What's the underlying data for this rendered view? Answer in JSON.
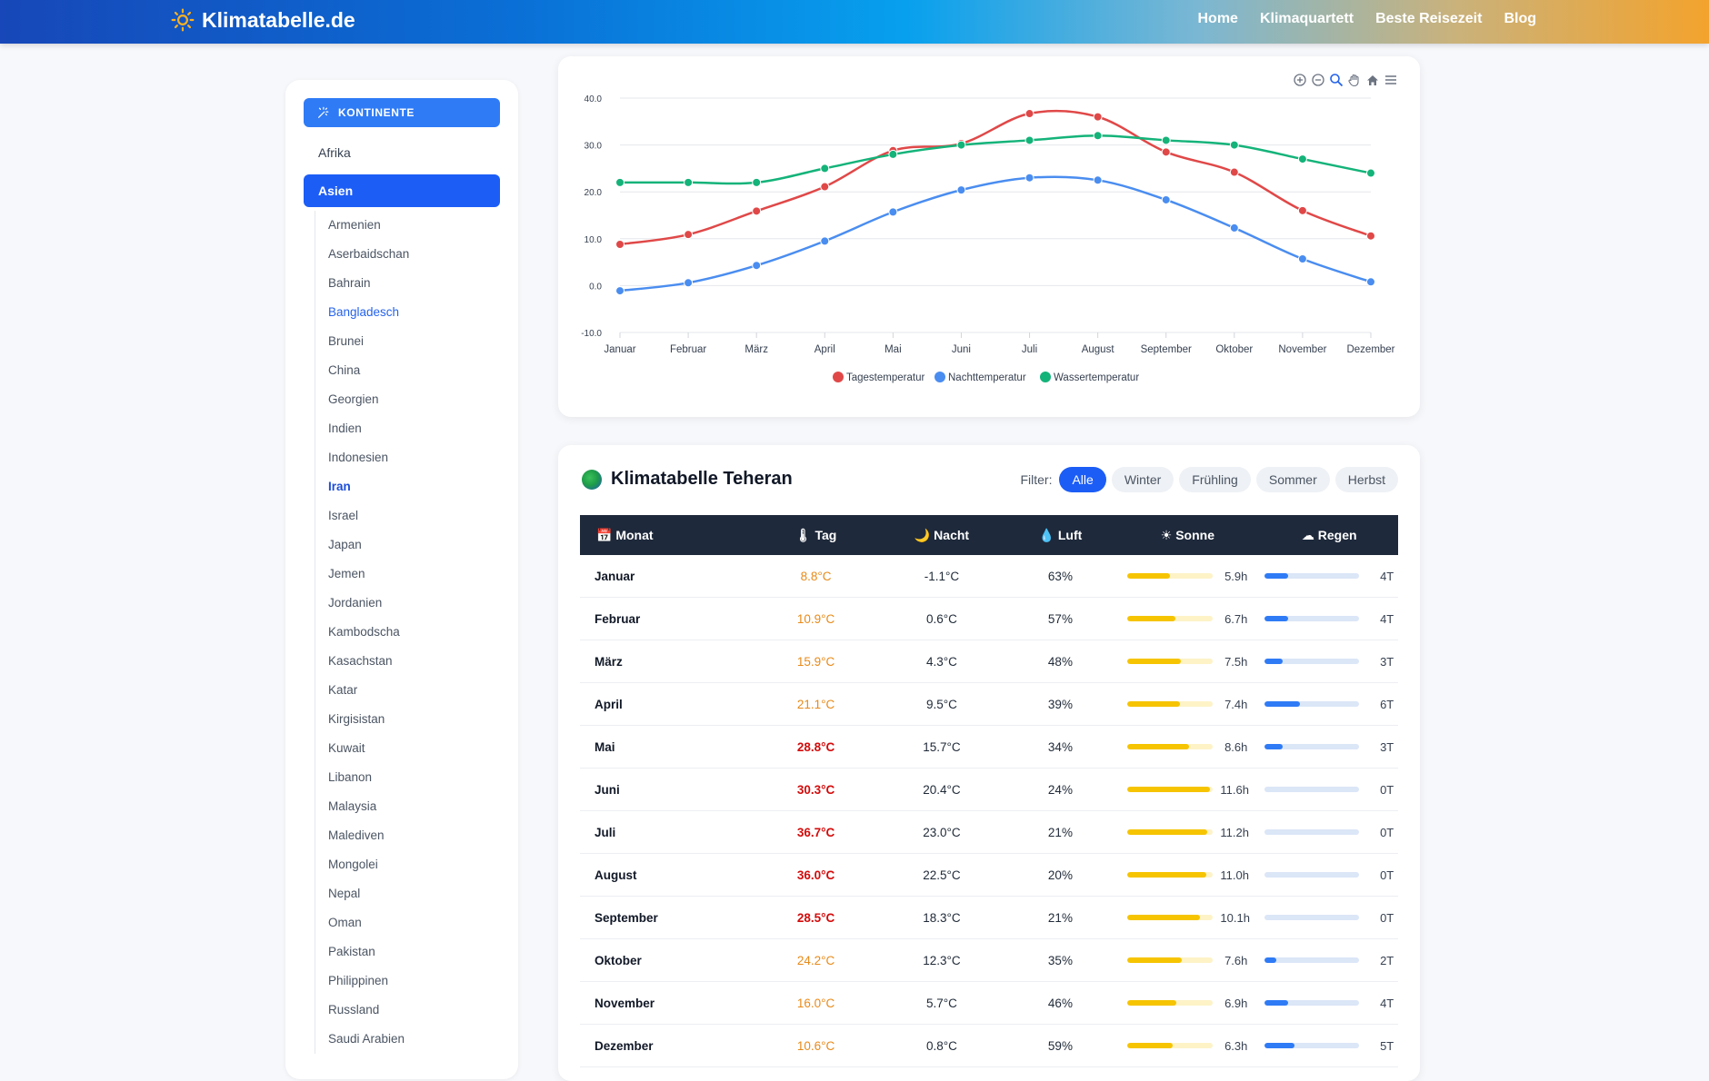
{
  "brand": {
    "name": "Klimatabelle.de",
    "logo_icon": "sun-icon"
  },
  "nav": [
    "Home",
    "Klimaquartett",
    "Beste Reisezeit",
    "Blog"
  ],
  "sidebar": {
    "continents_label": "KONTINENTE",
    "continents": [
      {
        "label": "Afrika",
        "active": false
      },
      {
        "label": "Asien",
        "active": true
      }
    ],
    "countries": [
      {
        "label": "Armenien",
        "state": "normal"
      },
      {
        "label": "Aserbaidschan",
        "state": "normal"
      },
      {
        "label": "Bahrain",
        "state": "normal"
      },
      {
        "label": "Bangladesch",
        "state": "link"
      },
      {
        "label": "Brunei",
        "state": "normal"
      },
      {
        "label": "China",
        "state": "normal"
      },
      {
        "label": "Georgien",
        "state": "normal"
      },
      {
        "label": "Indien",
        "state": "normal"
      },
      {
        "label": "Indonesien",
        "state": "normal"
      },
      {
        "label": "Iran",
        "state": "current"
      },
      {
        "label": "Israel",
        "state": "normal"
      },
      {
        "label": "Japan",
        "state": "normal"
      },
      {
        "label": "Jemen",
        "state": "normal"
      },
      {
        "label": "Jordanien",
        "state": "normal"
      },
      {
        "label": "Kambodscha",
        "state": "normal"
      },
      {
        "label": "Kasachstan",
        "state": "normal"
      },
      {
        "label": "Katar",
        "state": "normal"
      },
      {
        "label": "Kirgisistan",
        "state": "normal"
      },
      {
        "label": "Kuwait",
        "state": "normal"
      },
      {
        "label": "Libanon",
        "state": "normal"
      },
      {
        "label": "Malaysia",
        "state": "normal"
      },
      {
        "label": "Malediven",
        "state": "normal"
      },
      {
        "label": "Mongolei",
        "state": "normal"
      },
      {
        "label": "Nepal",
        "state": "normal"
      },
      {
        "label": "Oman",
        "state": "normal"
      },
      {
        "label": "Pakistan",
        "state": "normal"
      },
      {
        "label": "Philippinen",
        "state": "normal"
      },
      {
        "label": "Russland",
        "state": "normal"
      },
      {
        "label": "Saudi Arabien",
        "state": "normal"
      }
    ]
  },
  "chart_tools": [
    "zoom-in-icon",
    "zoom-out-icon",
    "selection-zoom-icon",
    "pan-hand-icon",
    "home-reset-icon",
    "menu-icon"
  ],
  "chart_data": {
    "type": "line",
    "title": "",
    "xlabel": "",
    "ylabel": "",
    "x": [
      "Januar",
      "Februar",
      "März",
      "April",
      "Mai",
      "Juni",
      "Juli",
      "August",
      "September",
      "Oktober",
      "November",
      "Dezember"
    ],
    "ylim": [
      -10,
      40
    ],
    "yticks": [
      "-10.0",
      "0.0",
      "10.0",
      "20.0",
      "30.0",
      "40.0"
    ],
    "grid": true,
    "legend": "bottom",
    "series": [
      {
        "name": "Tagestemperatur",
        "color": "#e04848",
        "values": [
          8.8,
          10.9,
          15.9,
          21.1,
          28.8,
          30.3,
          36.7,
          36.0,
          28.5,
          24.2,
          16.0,
          10.6
        ]
      },
      {
        "name": "Nachttemperatur",
        "color": "#4a8df0",
        "values": [
          -1.1,
          0.6,
          4.3,
          9.5,
          15.7,
          20.4,
          23.0,
          22.5,
          18.3,
          12.3,
          5.7,
          0.8
        ]
      },
      {
        "name": "Wassertemperatur",
        "color": "#14b37a",
        "values": [
          22,
          22,
          22,
          25,
          28,
          30,
          31,
          32,
          31,
          30,
          27,
          24
        ]
      }
    ]
  },
  "table": {
    "title": "Klimatabelle Teheran",
    "filter_label": "Filter:",
    "filters": [
      {
        "label": "Alle",
        "active": true
      },
      {
        "label": "Winter",
        "active": false
      },
      {
        "label": "Frühling",
        "active": false
      },
      {
        "label": "Sommer",
        "active": false
      },
      {
        "label": "Herbst",
        "active": false
      }
    ],
    "headers": [
      {
        "icon": "calendar-icon",
        "label": "Monat"
      },
      {
        "icon": "thermometer-icon",
        "label": "Tag"
      },
      {
        "icon": "moon-icon",
        "label": "Nacht"
      },
      {
        "icon": "droplet-icon",
        "label": "Luft"
      },
      {
        "icon": "sun-icon",
        "label": "Sonne"
      },
      {
        "icon": "rain-cloud-icon",
        "label": "Regen"
      }
    ],
    "rows": [
      {
        "month": "Januar",
        "day": "8.8°C",
        "heat": "warm",
        "night": "-1.1°C",
        "humidity": "63%",
        "sun": "5.9h",
        "sun_h": 5.9,
        "rain": "4T",
        "rain_d": 4
      },
      {
        "month": "Februar",
        "day": "10.9°C",
        "heat": "warm",
        "night": "0.6°C",
        "humidity": "57%",
        "sun": "6.7h",
        "sun_h": 6.7,
        "rain": "4T",
        "rain_d": 4
      },
      {
        "month": "März",
        "day": "15.9°C",
        "heat": "warm",
        "night": "4.3°C",
        "humidity": "48%",
        "sun": "7.5h",
        "sun_h": 7.5,
        "rain": "3T",
        "rain_d": 3
      },
      {
        "month": "April",
        "day": "21.1°C",
        "heat": "warm",
        "night": "9.5°C",
        "humidity": "39%",
        "sun": "7.4h",
        "sun_h": 7.4,
        "rain": "6T",
        "rain_d": 6
      },
      {
        "month": "Mai",
        "day": "28.8°C",
        "heat": "hot",
        "night": "15.7°C",
        "humidity": "34%",
        "sun": "8.6h",
        "sun_h": 8.6,
        "rain": "3T",
        "rain_d": 3
      },
      {
        "month": "Juni",
        "day": "30.3°C",
        "heat": "hot",
        "night": "20.4°C",
        "humidity": "24%",
        "sun": "11.6h",
        "sun_h": 11.6,
        "rain": "0T",
        "rain_d": 0
      },
      {
        "month": "Juli",
        "day": "36.7°C",
        "heat": "hot",
        "night": "23.0°C",
        "humidity": "21%",
        "sun": "11.2h",
        "sun_h": 11.2,
        "rain": "0T",
        "rain_d": 0
      },
      {
        "month": "August",
        "day": "36.0°C",
        "heat": "hot",
        "night": "22.5°C",
        "humidity": "20%",
        "sun": "11.0h",
        "sun_h": 11.0,
        "rain": "0T",
        "rain_d": 0
      },
      {
        "month": "September",
        "day": "28.5°C",
        "heat": "hot",
        "night": "18.3°C",
        "humidity": "21%",
        "sun": "10.1h",
        "sun_h": 10.1,
        "rain": "0T",
        "rain_d": 0
      },
      {
        "month": "Oktober",
        "day": "24.2°C",
        "heat": "warm",
        "night": "12.3°C",
        "humidity": "35%",
        "sun": "7.6h",
        "sun_h": 7.6,
        "rain": "2T",
        "rain_d": 2
      },
      {
        "month": "November",
        "day": "16.0°C",
        "heat": "warm",
        "night": "5.7°C",
        "humidity": "46%",
        "sun": "6.9h",
        "sun_h": 6.9,
        "rain": "4T",
        "rain_d": 4
      },
      {
        "month": "Dezember",
        "day": "10.6°C",
        "heat": "warm",
        "night": "0.8°C",
        "humidity": "59%",
        "sun": "6.3h",
        "sun_h": 6.3,
        "rain": "5T",
        "rain_d": 5
      }
    ]
  }
}
